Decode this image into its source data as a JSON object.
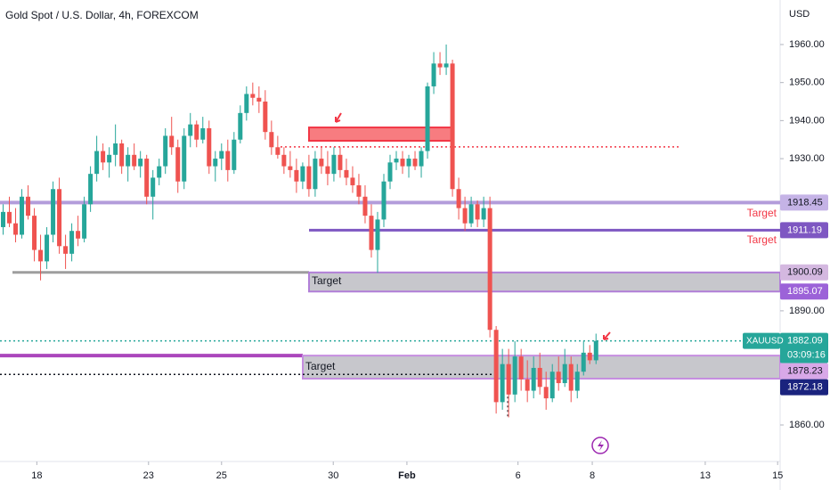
{
  "chart_data": {
    "type": "candlestick",
    "title": "Gold Spot / U.S. Dollar, 4h, FOREXCOM",
    "currency": "USD",
    "symbol": "XAUUSD",
    "countdown": "03:09:16",
    "up_color": "#26a69a",
    "down_color": "#ef5350",
    "open": [
      1912,
      1916,
      1913,
      1910,
      1920,
      1915,
      1906,
      1903,
      1910,
      1922,
      1907,
      1905,
      1911,
      1909,
      1918,
      1926,
      1932,
      1929,
      1931,
      1934,
      1928,
      1931,
      1928,
      1930,
      1920,
      1925,
      1928,
      1936,
      1933,
      1924,
      1936,
      1939,
      1935,
      1938,
      1928,
      1930,
      1932,
      1927,
      1935,
      1942,
      1947,
      1946,
      1945,
      1937,
      1933,
      1931,
      1928,
      1927,
      1924,
      1928,
      1922,
      1930,
      1928,
      1926,
      1931,
      1927,
      1925,
      1923,
      1920,
      1915,
      1906,
      1914,
      1924,
      1929,
      1930,
      1928,
      1930,
      1928,
      1932,
      1949,
      1955,
      1954,
      1955,
      1922,
      1917,
      1913,
      1918,
      1914,
      1917,
      1885,
      1866,
      1876,
      1868,
      1878,
      1872,
      1869,
      1875,
      1870,
      1867,
      1874,
      1871,
      1876,
      1869,
      1874,
      1879,
      1877
    ],
    "high": [
      1918,
      1920,
      1917,
      1922,
      1923,
      1917,
      1910,
      1912,
      1924,
      1925,
      1910,
      1913,
      1915,
      1920,
      1928,
      1936,
      1934,
      1933,
      1939,
      1935,
      1933,
      1934,
      1932,
      1931,
      1927,
      1930,
      1938,
      1941,
      1935,
      1938,
      1942,
      1940,
      1941,
      1940,
      1932,
      1934,
      1935,
      1937,
      1944,
      1949,
      1950,
      1949,
      1948,
      1940,
      1936,
      1933,
      1932,
      1930,
      1929,
      1931,
      1932,
      1933,
      1932,
      1933,
      1933,
      1930,
      1928,
      1926,
      1923,
      1918,
      1916,
      1926,
      1931,
      1932,
      1932,
      1931,
      1932,
      1933,
      1950,
      1958,
      1958,
      1960,
      1956,
      1925,
      1920,
      1920,
      1919,
      1920,
      1920,
      1886,
      1880,
      1880,
      1882,
      1880,
      1877,
      1878,
      1879,
      1874,
      1876,
      1878,
      1880,
      1878,
      1876,
      1882,
      1881,
      1884
    ],
    "low": [
      1910,
      1912,
      1908,
      1909,
      1914,
      1903,
      1898,
      1901,
      1908,
      1905,
      1901,
      1903,
      1907,
      1908,
      1916,
      1924,
      1927,
      1925,
      1928,
      1926,
      1924,
      1927,
      1925,
      1918,
      1914,
      1923,
      1926,
      1931,
      1921,
      1922,
      1933,
      1933,
      1934,
      1926,
      1924,
      1927,
      1924,
      1926,
      1934,
      1940,
      1944,
      1942,
      1935,
      1931,
      1930,
      1926,
      1925,
      1921,
      1922,
      1920,
      1920,
      1926,
      1923,
      1924,
      1925,
      1923,
      1921,
      1918,
      1913,
      1904,
      1900,
      1912,
      1922,
      1927,
      1926,
      1925,
      1927,
      1925,
      1930,
      1947,
      1952,
      1952,
      1920,
      1914,
      1911,
      1912,
      1912,
      1912,
      1883,
      1863,
      1864,
      1862,
      1866,
      1869,
      1866,
      1867,
      1868,
      1864,
      1866,
      1869,
      1870,
      1866,
      1867,
      1873,
      1876,
      1876
    ],
    "close": [
      1916,
      1913,
      1910,
      1920,
      1915,
      1906,
      1903,
      1910,
      1922,
      1907,
      1905,
      1911,
      1909,
      1918,
      1926,
      1932,
      1929,
      1931,
      1934,
      1928,
      1931,
      1928,
      1930,
      1920,
      1925,
      1928,
      1936,
      1933,
      1924,
      1936,
      1939,
      1935,
      1938,
      1928,
      1930,
      1932,
      1927,
      1935,
      1942,
      1947,
      1946,
      1945,
      1937,
      1933,
      1931,
      1928,
      1927,
      1924,
      1928,
      1922,
      1930,
      1928,
      1926,
      1931,
      1927,
      1925,
      1923,
      1920,
      1915,
      1906,
      1914,
      1924,
      1929,
      1930,
      1928,
      1930,
      1928,
      1932,
      1949,
      1955,
      1954,
      1955,
      1922,
      1917,
      1913,
      1918,
      1914,
      1917,
      1885,
      1866,
      1876,
      1868,
      1878,
      1872,
      1869,
      1875,
      1870,
      1867,
      1874,
      1871,
      1876,
      1869,
      1874,
      1879,
      1877,
      1882.09
    ],
    "xlim": [
      0,
      125
    ],
    "xticks": [
      {
        "value": 5.9,
        "label": "18"
      },
      {
        "value": 23.8,
        "label": "23"
      },
      {
        "value": 35.5,
        "label": "25"
      },
      {
        "value": 53.4,
        "label": "30"
      },
      {
        "value": 65.2,
        "label": "Feb"
      },
      {
        "value": 83,
        "label": "6"
      },
      {
        "value": 94.9,
        "label": "8"
      },
      {
        "value": 113,
        "label": "13"
      },
      {
        "value": 124.6,
        "label": "15"
      }
    ],
    "ylim": [
      1850.4,
      1971.7
    ],
    "yticks": [
      {
        "value": 1860,
        "label": "1860.00"
      },
      {
        "value": 1890,
        "label": "1890.00"
      },
      {
        "value": 1930,
        "label": "1930.00"
      },
      {
        "value": 1940,
        "label": "1940.00"
      },
      {
        "value": 1950,
        "label": "1950.00"
      },
      {
        "value": 1960,
        "label": "1960.00"
      }
    ],
    "price_labels": [
      {
        "value": 1918.45,
        "color": "#c5b3e6"
      },
      {
        "value": 1911.19,
        "color": "#7e57c2"
      },
      {
        "value": 1900.09,
        "color": "#d4b8e0"
      },
      {
        "value": 1895.07,
        "color": "#9c62d8"
      },
      {
        "value": 1882.09,
        "color": "#26a69a"
      },
      {
        "value": 1878.23,
        "color": "#d8a8e8"
      },
      {
        "value": 1872.18,
        "color": "#1a237e"
      }
    ],
    "resistance_zone": [
      1934.7,
      1938.2
    ],
    "lines": [
      1933.1,
      1873.3
    ],
    "annotations": [
      "Target",
      "Target",
      "Target",
      "Target"
    ]
  }
}
